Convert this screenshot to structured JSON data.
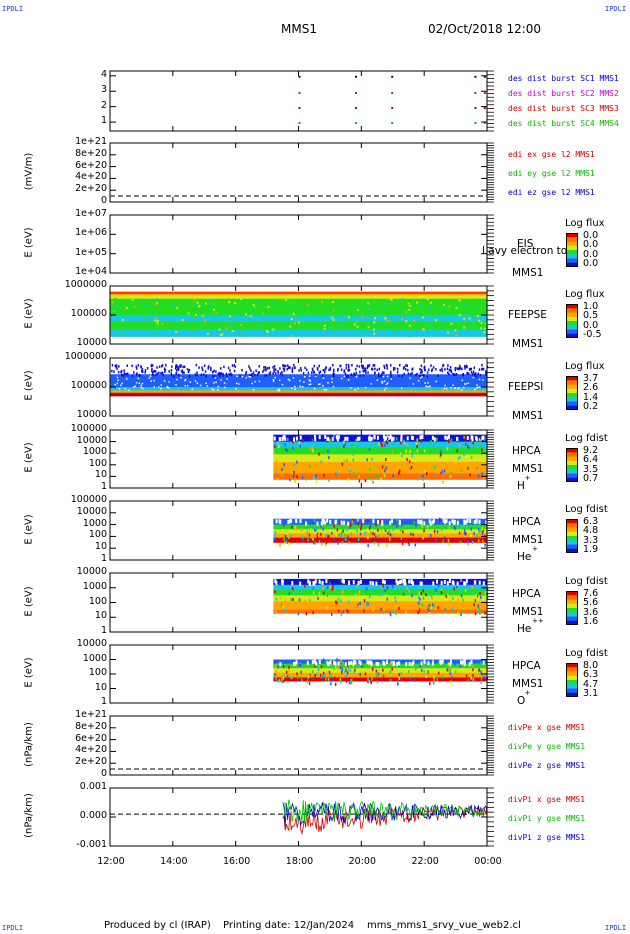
{
  "header": {
    "corner_tl": "IPDLI",
    "corner_tr": "IPDLI",
    "corner_bl": "IPDLI",
    "corner_br": "IPDLI",
    "mission": "MMS1",
    "date": "02/Oct/2018 12:00"
  },
  "footer": {
    "produced": "Produced by cl (IRAP)",
    "printing": "Printing date: 12/Jan/2024",
    "file": "mms_mms1_srvy_vue_web2.cl"
  },
  "chart_data": [
    {
      "type": "scatter",
      "title": "burst availability",
      "yticks": [
        "4",
        "3",
        "2",
        "1"
      ],
      "legend": [
        {
          "text": "des dist burst SC1 MMS1",
          "color": "#0000cc"
        },
        {
          "text": "des dist burst SC2 MMS2",
          "color": "#cc00cc"
        },
        {
          "text": "des dist burst SC3 MMS3",
          "color": "#cc0000"
        },
        {
          "text": "des dist burst SC4 MMS4",
          "color": "#00bb00"
        }
      ],
      "marks_x_hours": [
        18.0,
        19.8,
        20.95,
        23.6,
        23.9
      ]
    },
    {
      "type": "line",
      "ylabel": "(mV/m)",
      "yticks": [
        "1e+21",
        "8e+20",
        "6e+20",
        "4e+20",
        "2e+20",
        "0"
      ],
      "legend": [
        {
          "text": "edi ex gse l2 MMS1",
          "color": "#cc0000"
        },
        {
          "text": "edi ey gse l2 MMS1",
          "color": "#00bb00"
        },
        {
          "text": "edi ez gse l2 MMS1",
          "color": "#0000cc"
        }
      ]
    },
    {
      "type": "heatmap",
      "ylabel": "E (eV)",
      "yticks": [
        "1e+07",
        "1e+06",
        "1e+05",
        "1e+04"
      ],
      "instrument": "EIS",
      "overlay_text": "l avy electron to",
      "spacecraft": "MMS1",
      "cbar_title": "Log flux",
      "cbar_values": [
        "0.0",
        "0.0",
        "0.0",
        "0.0"
      ]
    },
    {
      "type": "heatmap",
      "ylabel": "E (eV)",
      "yticks": [
        "1000000",
        "100000",
        "10000"
      ],
      "instrument": "FEEPSE",
      "spacecraft": "MMS1",
      "cbar_title": "Log flux",
      "cbar_values": [
        "1.0",
        "0.5",
        "0.0",
        "-0.5"
      ]
    },
    {
      "type": "heatmap",
      "ylabel": "E (eV)",
      "yticks": [
        "1000000",
        "100000",
        "10000"
      ],
      "instrument": "FEEPSI",
      "spacecraft": "MMS1",
      "cbar_title": "Log flux",
      "cbar_values": [
        "3.7",
        "2.6",
        "1.4",
        "0.2"
      ]
    },
    {
      "type": "heatmap",
      "ylabel": "E (eV)",
      "yticks": [
        "100000",
        "10000",
        "1000",
        "100",
        "10",
        "1"
      ],
      "instrument": "HPCA",
      "spacecraft": "MMS1",
      "species": "H",
      "species_sup": "+",
      "cbar_title": "Log fdist",
      "cbar_values": [
        "9.2",
        "6.4",
        "3.5",
        "0.7"
      ],
      "data_start_hour": 17.2
    },
    {
      "type": "heatmap",
      "ylabel": "E (eV)",
      "yticks": [
        "100000",
        "10000",
        "1000",
        "100",
        "10",
        "1"
      ],
      "instrument": "HPCA",
      "spacecraft": "MMS1",
      "species": "He",
      "species_sup": "+",
      "cbar_title": "Log fdist",
      "cbar_values": [
        "6.3",
        "4.8",
        "3.3",
        "1.9"
      ],
      "data_start_hour": 17.2
    },
    {
      "type": "heatmap",
      "ylabel": "E (eV)",
      "yticks": [
        "10000",
        "1000",
        "100",
        "10",
        "1"
      ],
      "instrument": "HPCA",
      "spacecraft": "MMS1",
      "species": "He",
      "species_sup": "++",
      "cbar_title": "Log fdist",
      "cbar_values": [
        "7.6",
        "5.6",
        "3.6",
        "1.6"
      ],
      "data_start_hour": 17.2
    },
    {
      "type": "heatmap",
      "ylabel": "E (eV)",
      "yticks": [
        "10000",
        "1000",
        "100",
        "10",
        "1"
      ],
      "instrument": "HPCA",
      "spacecraft": "MMS1",
      "species": "O",
      "species_sup": "+",
      "cbar_title": "Log fdist",
      "cbar_values": [
        "8.0",
        "6.3",
        "4.7",
        "3.1"
      ],
      "data_start_hour": 17.2
    },
    {
      "type": "line",
      "ylabel": "(nPa/km)",
      "yticks": [
        "1e+21",
        "8e+20",
        "6e+20",
        "4e+20",
        "2e+20",
        "0"
      ],
      "legend": [
        {
          "text": "divPe x gse MMS1",
          "color": "#cc0000"
        },
        {
          "text": "divPe y gse MMS1",
          "color": "#00bb00"
        },
        {
          "text": "divPe z gse MMS1",
          "color": "#0000cc"
        }
      ]
    },
    {
      "type": "line",
      "ylabel": "(nPa/km)",
      "yticks": [
        "0.001",
        "0.000",
        "-0.001"
      ],
      "ylim": [
        -0.0015,
        0.0015
      ],
      "legend": [
        {
          "text": "divPi x gse MMS1",
          "color": "#cc0000"
        },
        {
          "text": "divPi y gse MMS1",
          "color": "#00bb00"
        },
        {
          "text": "divPi z gse MMS1",
          "color": "#0000cc"
        }
      ],
      "data_start_hour": 17.5
    }
  ],
  "xaxis": {
    "ticks": [
      "12:00",
      "14:00",
      "16:00",
      "18:00",
      "20:00",
      "22:00",
      "00:00"
    ],
    "range_hours": [
      12,
      24
    ]
  }
}
